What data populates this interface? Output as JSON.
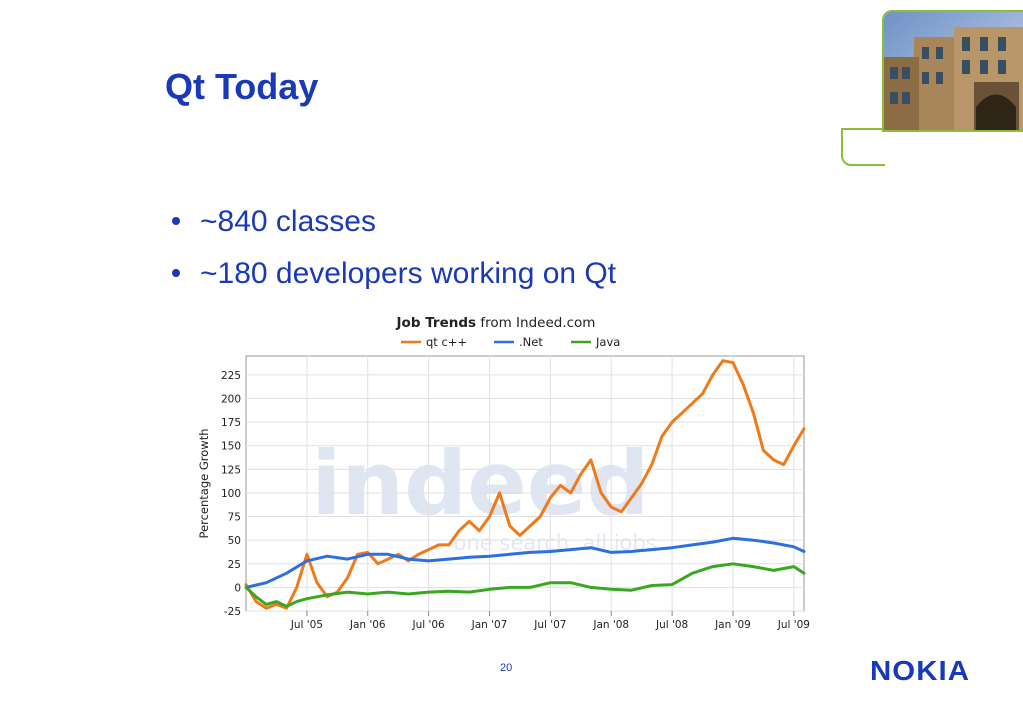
{
  "slide": {
    "title": "Qt Today",
    "bullets": [
      "~840 classes",
      "~180 developers working on Qt"
    ],
    "page_number": "20",
    "logo_text": "NOKIA",
    "colors": {
      "title": "#1a39b8",
      "frame": "#8bbd3c"
    }
  },
  "chart_data": {
    "type": "line",
    "title_bold": "Job Trends",
    "title_rest": " from Indeed.com",
    "ylabel": "Percentage Growth",
    "watermark": "indeed",
    "watermark_tagline": "one search. all jobs.",
    "ylim": [
      -25,
      245
    ],
    "yticks": [
      -25,
      0,
      25,
      50,
      75,
      100,
      125,
      150,
      175,
      200,
      225
    ],
    "xlim": [
      0,
      55
    ],
    "xticks": [
      {
        "label": "Jul '05",
        "x": 6
      },
      {
        "label": "Jan '06",
        "x": 12
      },
      {
        "label": "Jul '06",
        "x": 18
      },
      {
        "label": "Jan '07",
        "x": 24
      },
      {
        "label": "Jul '07",
        "x": 30
      },
      {
        "label": "Jan '08",
        "x": 36
      },
      {
        "label": "Jul '08",
        "x": 42
      },
      {
        "label": "Jan '09",
        "x": 48
      },
      {
        "label": "Jul '09",
        "x": 54
      }
    ],
    "grid": true,
    "legend_position": "top",
    "series": [
      {
        "name": "qt c++",
        "color": "#f07a1a",
        "points": [
          [
            0,
            3
          ],
          [
            1,
            -15
          ],
          [
            2,
            -22
          ],
          [
            3,
            -18
          ],
          [
            4,
            -22
          ],
          [
            5,
            0
          ],
          [
            6,
            35
          ],
          [
            7,
            5
          ],
          [
            8,
            -10
          ],
          [
            9,
            -5
          ],
          [
            10,
            10
          ],
          [
            11,
            35
          ],
          [
            12,
            37
          ],
          [
            13,
            25
          ],
          [
            14,
            30
          ],
          [
            15,
            35
          ],
          [
            16,
            28
          ],
          [
            17,
            35
          ],
          [
            18,
            40
          ],
          [
            19,
            45
          ],
          [
            20,
            45
          ],
          [
            21,
            60
          ],
          [
            22,
            70
          ],
          [
            23,
            60
          ],
          [
            24,
            75
          ],
          [
            25,
            100
          ],
          [
            26,
            65
          ],
          [
            27,
            55
          ],
          [
            28,
            65
          ],
          [
            29,
            75
          ],
          [
            30,
            95
          ],
          [
            31,
            108
          ],
          [
            32,
            100
          ],
          [
            33,
            120
          ],
          [
            34,
            135
          ],
          [
            35,
            100
          ],
          [
            36,
            85
          ],
          [
            37,
            80
          ],
          [
            38,
            95
          ],
          [
            39,
            110
          ],
          [
            40,
            130
          ],
          [
            41,
            160
          ],
          [
            42,
            175
          ],
          [
            43,
            185
          ],
          [
            44,
            195
          ],
          [
            45,
            205
          ],
          [
            46,
            225
          ],
          [
            47,
            240
          ],
          [
            48,
            238
          ],
          [
            49,
            215
          ],
          [
            50,
            185
          ],
          [
            51,
            145
          ],
          [
            52,
            135
          ],
          [
            53,
            130
          ],
          [
            54,
            150
          ],
          [
            55,
            168
          ]
        ]
      },
      {
        "name": ".Net",
        "color": "#2b6fe0",
        "points": [
          [
            0,
            0
          ],
          [
            2,
            5
          ],
          [
            4,
            15
          ],
          [
            6,
            28
          ],
          [
            8,
            33
          ],
          [
            10,
            30
          ],
          [
            12,
            35
          ],
          [
            14,
            35
          ],
          [
            16,
            30
          ],
          [
            18,
            28
          ],
          [
            20,
            30
          ],
          [
            22,
            32
          ],
          [
            24,
            33
          ],
          [
            26,
            35
          ],
          [
            28,
            37
          ],
          [
            30,
            38
          ],
          [
            32,
            40
          ],
          [
            34,
            42
          ],
          [
            36,
            37
          ],
          [
            38,
            38
          ],
          [
            40,
            40
          ],
          [
            42,
            42
          ],
          [
            44,
            45
          ],
          [
            46,
            48
          ],
          [
            48,
            52
          ],
          [
            50,
            50
          ],
          [
            52,
            47
          ],
          [
            54,
            43
          ],
          [
            55,
            38
          ]
        ]
      },
      {
        "name": "Java",
        "color": "#3aa81e",
        "points": [
          [
            0,
            0
          ],
          [
            1,
            -10
          ],
          [
            2,
            -18
          ],
          [
            3,
            -15
          ],
          [
            4,
            -20
          ],
          [
            5,
            -15
          ],
          [
            6,
            -12
          ],
          [
            7,
            -10
          ],
          [
            8,
            -8
          ],
          [
            10,
            -5
          ],
          [
            12,
            -7
          ],
          [
            14,
            -5
          ],
          [
            16,
            -7
          ],
          [
            18,
            -5
          ],
          [
            20,
            -4
          ],
          [
            22,
            -5
          ],
          [
            24,
            -2
          ],
          [
            26,
            0
          ],
          [
            28,
            0
          ],
          [
            30,
            5
          ],
          [
            32,
            5
          ],
          [
            34,
            0
          ],
          [
            36,
            -2
          ],
          [
            38,
            -3
          ],
          [
            40,
            2
          ],
          [
            42,
            3
          ],
          [
            44,
            15
          ],
          [
            46,
            22
          ],
          [
            48,
            25
          ],
          [
            50,
            22
          ],
          [
            52,
            18
          ],
          [
            54,
            22
          ],
          [
            55,
            15
          ]
        ]
      }
    ]
  }
}
